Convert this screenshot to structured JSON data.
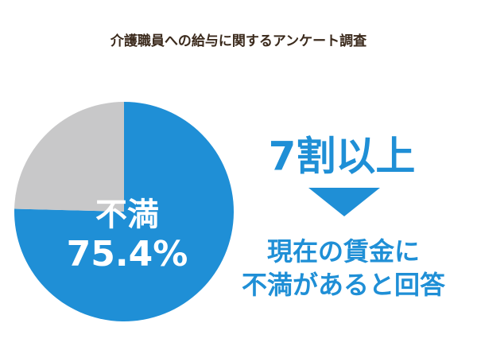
{
  "chart_data": {
    "type": "pie",
    "title": "介護職員への給与に関するアンケート調査",
    "categories": [
      "不満",
      null
    ],
    "values": [
      75.4,
      24.6
    ],
    "value_labels": [
      "75.4%",
      null
    ],
    "colors": [
      "#1f8fd6",
      "#c8c8c9"
    ],
    "start_angle": 0,
    "direction": "clockwise",
    "headline": "7割以上",
    "note": [
      "現在の賃金に",
      "不満があると回答"
    ]
  }
}
